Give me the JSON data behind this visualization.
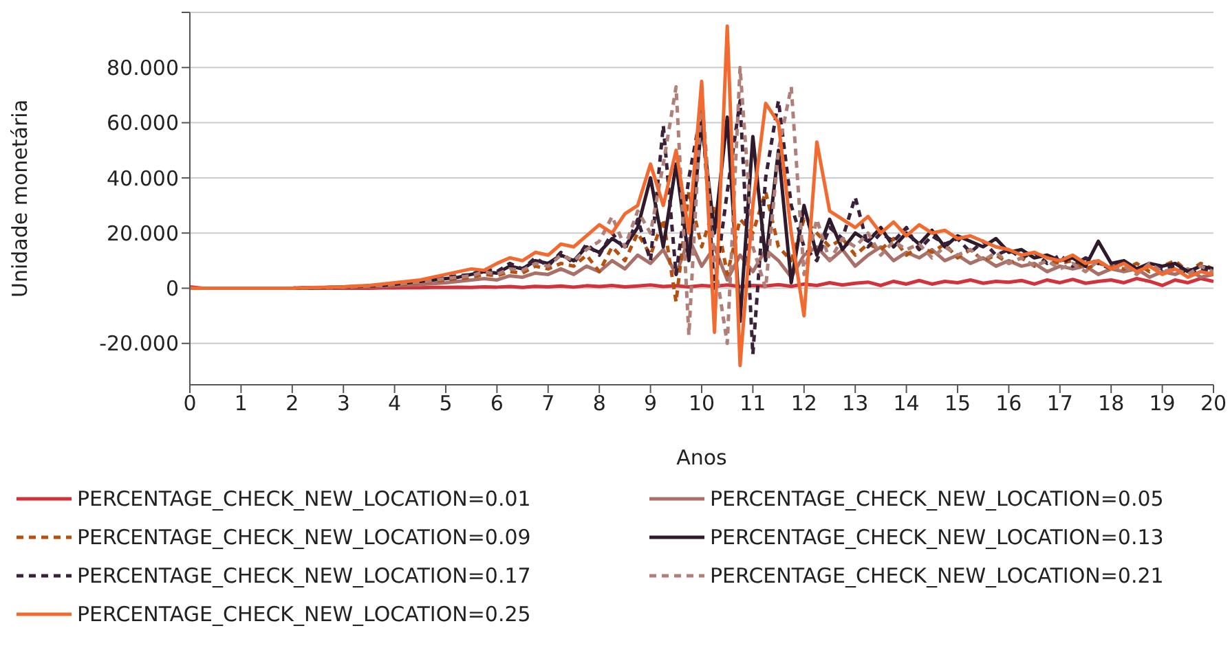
{
  "chart_data": {
    "type": "line",
    "xlabel": "Anos",
    "ylabel": "Unidade monetária",
    "xlim": [
      0,
      20
    ],
    "xticks": [
      0,
      1,
      2,
      3,
      4,
      5,
      6,
      7,
      8,
      9,
      10,
      11,
      12,
      13,
      14,
      15,
      16,
      17,
      18,
      19,
      20
    ],
    "ylim": [
      -35,
      100
    ],
    "yticks": [
      {
        "value": -20,
        "label": "-20.000"
      },
      0,
      {
        "value": 20,
        "label": "20.000"
      },
      {
        "value": 40,
        "label": "40.000"
      },
      {
        "value": 60,
        "label": "60.000"
      },
      {
        "value": 80,
        "label": "80.000"
      },
      {
        "value": 100,
        "label": null
      }
    ],
    "grid": "y",
    "legend": "bottom",
    "x": [
      0,
      0.25,
      0.5,
      0.75,
      1,
      1.25,
      1.5,
      1.75,
      2,
      2.25,
      2.5,
      2.75,
      3,
      3.25,
      3.5,
      3.75,
      4,
      4.25,
      4.5,
      4.75,
      5,
      5.25,
      5.5,
      5.75,
      6,
      6.25,
      6.5,
      6.75,
      7,
      7.25,
      7.5,
      7.75,
      8,
      8.25,
      8.5,
      8.75,
      9,
      9.25,
      9.5,
      9.75,
      10,
      10.25,
      10.5,
      10.75,
      11,
      11.25,
      11.5,
      11.75,
      12,
      12.25,
      12.5,
      12.75,
      13,
      13.25,
      13.5,
      13.75,
      14,
      14.25,
      14.5,
      14.75,
      15,
      15.25,
      15.5,
      15.75,
      16,
      16.25,
      16.5,
      16.75,
      17,
      17.25,
      17.5,
      17.75,
      18,
      18.25,
      18.5,
      18.75,
      19,
      19.25,
      19.5,
      19.75,
      20
    ],
    "series": [
      {
        "name": "PERCENTAGE_CHECK_NEW_LOCATION=0.01",
        "color": "#d2323c",
        "line_style": "solid",
        "values": [
          0.5,
          0,
          0,
          0,
          0,
          0,
          0,
          0,
          0,
          0,
          0,
          0,
          0,
          0,
          0,
          0.1,
          0.1,
          0.2,
          0.2,
          0.3,
          0.3,
          0.4,
          0.3,
          0.5,
          0.4,
          0.6,
          0.3,
          0.7,
          0.5,
          0.8,
          0.4,
          0.9,
          0.6,
          1,
          0.5,
          0.8,
          1.2,
          0.6,
          0.9,
          0.5,
          1,
          0.7,
          1.2,
          0.6,
          1,
          0.8,
          1.3,
          0.7,
          1.5,
          1,
          2,
          1.2,
          1.8,
          2.2,
          1,
          2.5,
          1.5,
          2.8,
          1.5,
          2.5,
          2,
          3,
          1.8,
          2.5,
          2.2,
          2.8,
          1.5,
          3,
          2,
          3.2,
          1.8,
          2.5,
          3,
          2,
          3.5,
          2.5,
          1,
          3,
          2,
          3.5,
          2.5
        ]
      },
      {
        "name": "PERCENTAGE_CHECK_NEW_LOCATION=0.05",
        "color": "#a87068",
        "line_style": "solid",
        "values": [
          0,
          0,
          0,
          0,
          0,
          0,
          0,
          0,
          0,
          0.1,
          0.1,
          0.2,
          0.3,
          0.4,
          0.5,
          0.7,
          0.9,
          1.1,
          1.4,
          1.7,
          2,
          2.5,
          3,
          3.5,
          3,
          4.5,
          4,
          5.5,
          5,
          7,
          5,
          8,
          6,
          10,
          7,
          12,
          9,
          14,
          5,
          18,
          8,
          15,
          3,
          12,
          6,
          14,
          10,
          4,
          12,
          15,
          10,
          14,
          8,
          12,
          15,
          10,
          13,
          11,
          14,
          10,
          12,
          9,
          11,
          8,
          10,
          8,
          9,
          6,
          8,
          7,
          8,
          5,
          7,
          6,
          7,
          4,
          6,
          5,
          7,
          4,
          5
        ]
      },
      {
        "name": "PERCENTAGE_CHECK_NEW_LOCATION=0.09",
        "color": "#b5500e",
        "line_style": "dashed",
        "values": [
          0,
          0,
          0,
          0,
          0,
          0,
          0,
          0,
          0,
          0.1,
          0.2,
          0.3,
          0.4,
          0.5,
          0.7,
          0.9,
          1.2,
          1.5,
          2,
          2.5,
          3,
          3.5,
          4,
          5,
          4.5,
          6,
          5.5,
          8,
          7,
          9,
          8,
          12,
          6,
          15,
          10,
          20,
          12,
          25,
          -5,
          35,
          15,
          30,
          5,
          25,
          20,
          35,
          15,
          10,
          25,
          20,
          15,
          18,
          12,
          16,
          14,
          18,
          12,
          15,
          13,
          16,
          11,
          14,
          10,
          12,
          9,
          11,
          8,
          10,
          9,
          10,
          7,
          9,
          8,
          7,
          9,
          6,
          8,
          10,
          6,
          9,
          7
        ]
      },
      {
        "name": "PERCENTAGE_CHECK_NEW_LOCATION=0.13",
        "color": "#2e1a2a",
        "line_style": "solid",
        "values": [
          0,
          0,
          0,
          0,
          0,
          0,
          0,
          0,
          0,
          0.1,
          0.2,
          0.3,
          0.5,
          0.6,
          0.8,
          1,
          1.5,
          2,
          2.5,
          3,
          3.5,
          4,
          5,
          6,
          5.5,
          8,
          7,
          10,
          9,
          12,
          10,
          15,
          13,
          18,
          15,
          22,
          40,
          15,
          45,
          10,
          60,
          20,
          62,
          -12,
          55,
          10,
          50,
          2,
          30,
          12,
          25,
          14,
          20,
          17,
          22,
          15,
          20,
          16,
          21,
          15,
          19,
          17,
          15,
          18,
          13,
          14,
          11,
          12,
          10,
          11,
          8,
          17,
          9,
          10,
          7,
          9,
          8,
          9,
          6,
          8,
          7
        ]
      },
      {
        "name": "PERCENTAGE_CHECK_NEW_LOCATION=0.17",
        "color": "#3a2038",
        "line_style": "dashed",
        "values": [
          0,
          0,
          0,
          0,
          0,
          0,
          0,
          0,
          0,
          0.1,
          0.2,
          0.3,
          0.5,
          0.6,
          0.9,
          1.2,
          1.6,
          2,
          2.5,
          3,
          4,
          4.5,
          5,
          7,
          6,
          9,
          7,
          11,
          8,
          13,
          9,
          16,
          12,
          20,
          14,
          25,
          10,
          59,
          5,
          40,
          65,
          0,
          35,
          68,
          -24,
          40,
          68,
          30,
          15,
          10,
          22,
          18,
          33,
          15,
          20,
          17,
          22,
          14,
          19,
          16,
          18,
          13,
          17,
          12,
          14,
          11,
          13,
          9,
          12,
          8,
          11,
          9,
          7,
          10,
          6,
          9,
          7,
          8,
          5,
          7,
          6
        ]
      },
      {
        "name": "PERCENTAGE_CHECK_NEW_LOCATION=0.21",
        "color": "#b08078",
        "line_style": "dashed",
        "values": [
          0,
          0,
          0,
          0,
          0,
          0,
          0,
          0,
          0,
          0.1,
          0.2,
          0.3,
          0.4,
          0.6,
          0.8,
          1,
          1.4,
          1.8,
          2.2,
          2.8,
          3.5,
          4,
          4.5,
          6,
          5,
          7,
          6.5,
          9,
          8,
          12,
          10,
          14,
          17,
          26,
          15,
          28,
          20,
          45,
          73,
          -17,
          70,
          10,
          -20,
          80,
          15,
          0,
          50,
          73,
          5,
          25,
          10,
          18,
          15,
          20,
          12,
          17,
          14,
          16,
          11,
          15,
          12,
          14,
          10,
          13,
          9,
          11,
          8,
          10,
          7,
          9,
          6,
          10,
          7,
          8,
          5,
          9,
          6,
          7,
          5,
          8,
          6
        ]
      },
      {
        "name": "PERCENTAGE_CHECK_NEW_LOCATION=0.25",
        "color": "#f26a30",
        "line_style": "solid",
        "values": [
          0,
          0,
          0,
          0,
          0,
          0,
          0,
          0,
          0,
          0.2,
          0.3,
          0.4,
          0.5,
          0.8,
          1,
          1.5,
          2,
          2.5,
          3,
          4,
          5,
          6,
          7,
          6.5,
          9,
          11,
          10,
          13,
          12,
          16,
          15,
          19,
          23,
          20,
          27,
          30,
          45,
          30,
          50,
          20,
          75,
          -16,
          95,
          -28,
          30,
          67,
          60,
          20,
          -10,
          53,
          28,
          25,
          22,
          26,
          20,
          24,
          19,
          23,
          20,
          21,
          18,
          19,
          17,
          15,
          14,
          12,
          13,
          11,
          10,
          12,
          9,
          10,
          7,
          9,
          6,
          8,
          5,
          7,
          4,
          6,
          5
        ]
      }
    ]
  }
}
